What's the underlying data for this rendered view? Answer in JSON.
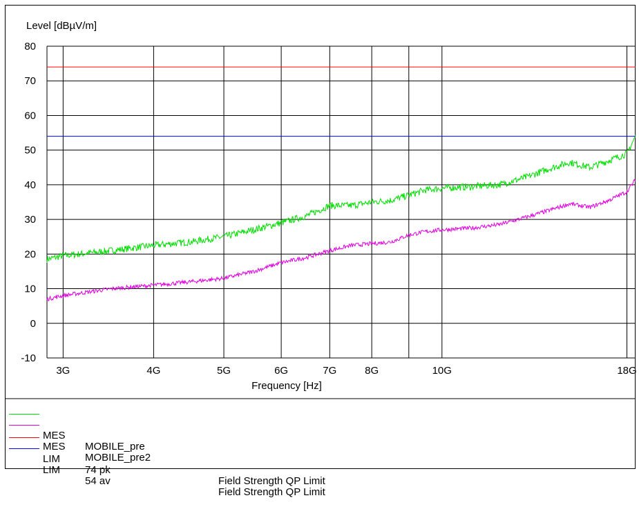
{
  "chart_data": {
    "type": "line",
    "ylabel": "Level [dBµV/m]",
    "xlabel": "Frequency [Hz]",
    "x_scale": "log",
    "xlim": [
      2850000000.0,
      18500000000.0
    ],
    "ylim": [
      -10,
      80
    ],
    "y_ticks": [
      80,
      70,
      60,
      50,
      40,
      30,
      20,
      10,
      0,
      -10
    ],
    "x_ticks": [
      {
        "value": 3000000000.0,
        "label": "3G"
      },
      {
        "value": 4000000000.0,
        "label": "4G"
      },
      {
        "value": 5000000000.0,
        "label": "5G"
      },
      {
        "value": 6000000000.0,
        "label": "6G"
      },
      {
        "value": 7000000000.0,
        "label": "7G"
      },
      {
        "value": 8000000000.0,
        "label": "8G"
      },
      {
        "value": 9000000000.0,
        "label": ""
      },
      {
        "value": 10000000000.0,
        "label": "10G"
      },
      {
        "value": 18000000000.0,
        "label": "18G"
      }
    ],
    "grid": true,
    "series": [
      {
        "name": "MOBILE_pre",
        "color": "#00dd00",
        "x": [
          2850000000.0,
          3000000000.0,
          3500000000.0,
          4000000000.0,
          4500000000.0,
          5000000000.0,
          5500000000.0,
          6000000000.0,
          6500000000.0,
          7000000000.0,
          7500000000.0,
          8000000000.0,
          8500000000.0,
          9000000000.0,
          9500000000.0,
          10000000000.0,
          11000000000.0,
          12000000000.0,
          13000000000.0,
          14000000000.0,
          15000000000.0,
          16000000000.0,
          17000000000.0,
          18000000000.0,
          18500000000.0
        ],
        "values": [
          18.5,
          19.5,
          21,
          22.5,
          23.5,
          25,
          27,
          29,
          31,
          34,
          34,
          35,
          35.5,
          37,
          38.5,
          39,
          39.5,
          40,
          42,
          44.5,
          46.5,
          45,
          47,
          49,
          54
        ]
      },
      {
        "name": "MOBILE_pre2",
        "color": "#dd00dd",
        "x": [
          2850000000.0,
          3000000000.0,
          3500000000.0,
          4000000000.0,
          4500000000.0,
          5000000000.0,
          5500000000.0,
          6000000000.0,
          6500000000.0,
          7000000000.0,
          7500000000.0,
          8000000000.0,
          8500000000.0,
          9000000000.0,
          9500000000.0,
          10000000000.0,
          11000000000.0,
          12000000000.0,
          13000000000.0,
          14000000000.0,
          15000000000.0,
          16000000000.0,
          17000000000.0,
          18000000000.0,
          18500000000.0
        ],
        "values": [
          7,
          8,
          10,
          11,
          12,
          13,
          15,
          17.5,
          19,
          21,
          22.5,
          23,
          23.5,
          25.5,
          26.5,
          27,
          27.5,
          28.5,
          30.5,
          32.5,
          34.5,
          33.5,
          35.5,
          38,
          41.5
        ]
      },
      {
        "name": "74 pk",
        "color": "#ff0000",
        "x": [
          2850000000.0,
          18500000000.0
        ],
        "values": [
          74,
          74
        ]
      },
      {
        "name": "54 av",
        "color": "#0000ff",
        "x": [
          2850000000.0,
          18500000000.0
        ],
        "values": [
          54,
          54
        ]
      }
    ]
  },
  "legend": [
    {
      "tag": "MES",
      "name": "MOBILE_pre",
      "desc": "",
      "color": "#00dd00"
    },
    {
      "tag": "MES",
      "name": "MOBILE_pre2",
      "desc": "",
      "color": "#dd00dd"
    },
    {
      "tag": "LIM",
      "name": "74 pk",
      "desc": "Field Strength QP Limit",
      "color": "#ff0000"
    },
    {
      "tag": "LIM",
      "name": "54 av",
      "desc": "Field Strength QP Limit",
      "color": "#0000ff"
    }
  ]
}
